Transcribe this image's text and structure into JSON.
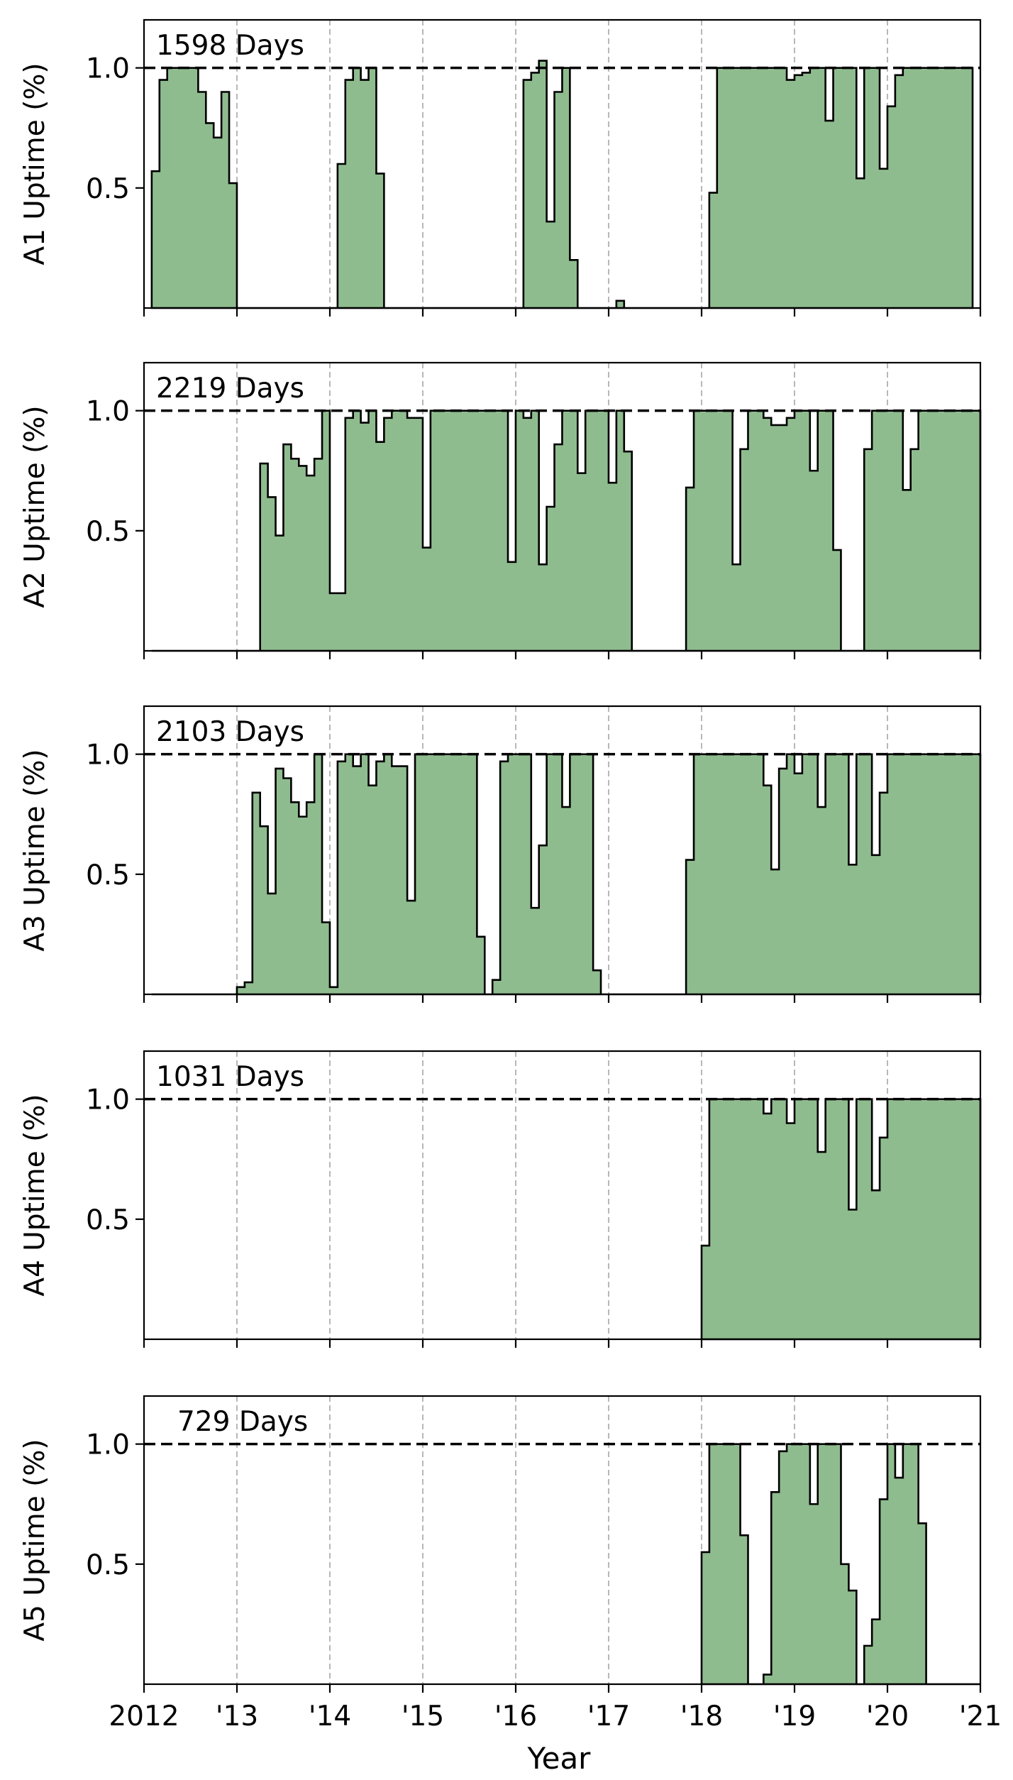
{
  "figure": {
    "xlabel": "Year"
  },
  "colors": {
    "fill": "#8fbc8f",
    "line": "#000000",
    "grid": "#b0b0b0"
  },
  "chart_data": [
    {
      "type": "area",
      "title": "",
      "xlabel": "",
      "ylabel": "A1 Uptime (%)",
      "annotation": "1598 Days",
      "xlim": [
        2012,
        2021
      ],
      "ylim": [
        0,
        1.2
      ],
      "yticks": [
        0.5,
        1.0
      ],
      "ytick_labels": [
        "0.5",
        "1.0"
      ],
      "reference_line": 1.0,
      "grid": "x-dashed",
      "step": "month",
      "series": [
        {
          "start": 2012.083,
          "values": [
            0.57,
            0.95,
            1.0,
            1.0,
            1.0,
            1.0,
            0.9,
            0.77,
            0.71,
            0.9,
            0.52,
            0,
            0,
            0,
            0,
            0,
            0,
            0,
            0,
            0,
            0,
            0,
            0,
            0,
            0.6,
            0.95,
            1.0,
            0.95,
            1.0,
            0.56,
            0,
            0,
            0,
            0,
            0,
            0,
            0,
            0,
            0,
            0,
            0,
            0,
            0,
            0,
            0,
            0,
            0,
            0,
            0.95,
            0.98,
            1.03,
            0.36,
            0.9,
            1.0,
            0.2,
            0,
            0,
            0,
            0,
            0,
            0.03,
            0,
            0,
            0,
            0,
            0,
            0,
            0,
            0,
            0,
            0,
            0,
            0.48,
            1.0,
            1.0,
            1.0,
            1.0,
            1.0,
            1.0,
            1.0,
            1.0,
            1.0,
            0.95,
            0.97,
            0.98,
            1.0,
            1.0,
            0.78,
            1.0,
            1.0,
            1.0,
            0.54,
            1.0,
            1.0,
            0.58,
            0.84,
            0.97,
            1.0,
            1.0,
            1.0,
            1.0,
            1.0,
            1.0,
            1.0,
            1.0,
            1.0
          ]
        }
      ]
    },
    {
      "type": "area",
      "title": "",
      "xlabel": "",
      "ylabel": "A2 Uptime (%)",
      "annotation": "2219 Days",
      "xlim": [
        2012,
        2021
      ],
      "ylim": [
        0,
        1.2
      ],
      "yticks": [
        0.5,
        1.0
      ],
      "ytick_labels": [
        "0.5",
        "1.0"
      ],
      "reference_line": 1.0,
      "grid": "x-dashed",
      "step": "month",
      "series": [
        {
          "start": 2012.083,
          "values": [
            0,
            0,
            0,
            0,
            0,
            0,
            0,
            0,
            0,
            0,
            0,
            0,
            0,
            0,
            0.78,
            0.64,
            0.48,
            0.86,
            0.8,
            0.77,
            0.73,
            0.8,
            1.0,
            0.24,
            0.24,
            0.97,
            1.0,
            0.95,
            1.0,
            0.87,
            0.97,
            1.0,
            1.0,
            0.97,
            0.97,
            0.43,
            1.0,
            1.0,
            1.0,
            1.0,
            1.0,
            1.0,
            1.0,
            1.0,
            1.0,
            1.0,
            0.37,
            1.0,
            0.97,
            1.0,
            0.36,
            0.6,
            0.86,
            1.0,
            1.0,
            0.74,
            1.0,
            1.0,
            1.0,
            0.7,
            1.0,
            0.83,
            0,
            0,
            0,
            0,
            0,
            0,
            0,
            0.68,
            1.0,
            1.0,
            1.0,
            1.0,
            1.0,
            0.36,
            0.84,
            1.0,
            1.0,
            0.97,
            0.94,
            0.94,
            0.97,
            1.0,
            1.0,
            0.75,
            1.0,
            1.0,
            0.42,
            0,
            0,
            0,
            0.84,
            1.0,
            1.0,
            1.0,
            1.0,
            0.67,
            0.84,
            1.0,
            1.0,
            1.0,
            1.0,
            1.0,
            1.0,
            1.0,
            1.0
          ]
        }
      ]
    },
    {
      "type": "area",
      "title": "",
      "xlabel": "",
      "ylabel": "A3 Uptime (%)",
      "annotation": "2103 Days",
      "xlim": [
        2012,
        2021
      ],
      "ylim": [
        0,
        1.2
      ],
      "yticks": [
        0.5,
        1.0
      ],
      "ytick_labels": [
        "0.5",
        "1.0"
      ],
      "reference_line": 1.0,
      "grid": "x-dashed",
      "step": "month",
      "series": [
        {
          "start": 2012.083,
          "values": [
            0,
            0,
            0,
            0,
            0,
            0,
            0,
            0,
            0,
            0,
            0,
            0.03,
            0.05,
            0.84,
            0.7,
            0.42,
            0.94,
            0.9,
            0.8,
            0.74,
            0.8,
            1.0,
            0.3,
            0.03,
            0.97,
            1.0,
            0.95,
            1.0,
            0.87,
            0.97,
            1.0,
            0.95,
            0.95,
            0.39,
            1.0,
            1.0,
            1.0,
            1.0,
            1.0,
            1.0,
            1.0,
            1.0,
            0.24,
            0,
            0.06,
            0.97,
            1.0,
            1.0,
            1.0,
            0.36,
            0.62,
            1.0,
            1.0,
            0.78,
            1.0,
            1.0,
            1.0,
            0.1,
            0,
            0,
            0,
            0,
            0,
            0,
            0,
            0,
            0,
            0,
            0,
            0.56,
            1.0,
            1.0,
            1.0,
            1.0,
            1.0,
            1.0,
            1.0,
            1.0,
            1.0,
            0.87,
            0.52,
            0.94,
            1.0,
            0.92,
            1.0,
            1.0,
            0.78,
            1.0,
            1.0,
            1.0,
            0.54,
            1.0,
            1.0,
            0.58,
            0.84,
            1.0,
            1.0,
            1.0,
            1.0,
            1.0,
            1.0,
            1.0,
            1.0,
            1.0,
            1.0,
            1.0,
            1.0
          ]
        }
      ]
    },
    {
      "type": "area",
      "title": "",
      "xlabel": "",
      "ylabel": "A4 Uptime (%)",
      "annotation": "1031 Days",
      "xlim": [
        2012,
        2021
      ],
      "ylim": [
        0,
        1.2
      ],
      "yticks": [
        0.5,
        1.0
      ],
      "ytick_labels": [
        "0.5",
        "1.0"
      ],
      "reference_line": 1.0,
      "grid": "x-dashed",
      "step": "month",
      "series": [
        {
          "start": 2018.0,
          "values": [
            0.39,
            1.0,
            1.0,
            1.0,
            1.0,
            1.0,
            1.0,
            1.0,
            0.94,
            1.0,
            1.0,
            0.9,
            1.0,
            1.0,
            1.0,
            0.78,
            1.0,
            1.0,
            1.0,
            0.54,
            1.0,
            1.0,
            0.62,
            0.84,
            1.0,
            1.0,
            1.0,
            1.0,
            1.0,
            1.0,
            1.0,
            1.0,
            1.0,
            1.0,
            1.0,
            1.0
          ]
        }
      ]
    },
    {
      "type": "area",
      "title": "",
      "xlabel": "",
      "ylabel": "A5 Uptime (%)",
      "annotation": "729 Days",
      "xlim": [
        2012,
        2021
      ],
      "ylim": [
        0,
        1.2
      ],
      "yticks": [
        0.5,
        1.0
      ],
      "ytick_labels": [
        "0.5",
        "1.0"
      ],
      "reference_line": 1.0,
      "grid": "x-dashed",
      "step": "month",
      "series": [
        {
          "start": 2018.0,
          "values": [
            0.55,
            1.0,
            1.0,
            1.0,
            1.0,
            0.62,
            0,
            0,
            0.04,
            0.8,
            0.97,
            1.0,
            1.0,
            1.0,
            0.75,
            1.0,
            1.0,
            1.0,
            0.5,
            0.39,
            0,
            0.16,
            0.27,
            0.77,
            1.0,
            0.86,
            1.0,
            1.0,
            0.67,
            0,
            0,
            0,
            0,
            0,
            0,
            0
          ]
        }
      ]
    }
  ],
  "xaxis": {
    "ticks": [
      2012,
      2013,
      2014,
      2015,
      2016,
      2017,
      2018,
      2019,
      2020,
      2021
    ],
    "tick_labels": [
      "2012",
      "'13",
      "'14",
      "'15",
      "'16",
      "'17",
      "'18",
      "'19",
      "'20",
      "'21"
    ]
  }
}
